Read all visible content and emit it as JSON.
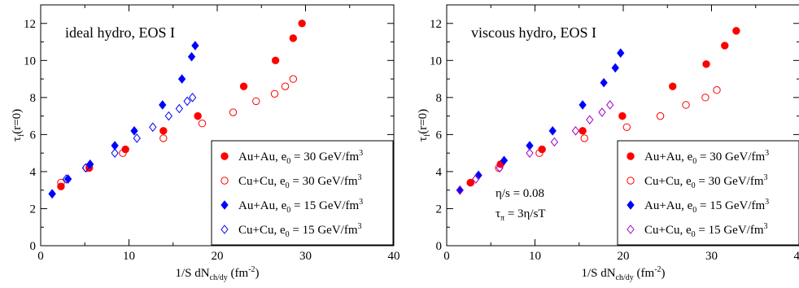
{
  "chart_data": [
    {
      "type": "scatter",
      "title": "ideal hydro, EOS I",
      "xlabel": "1/S dN_ch/dy (fm^-2)",
      "ylabel": "τ_f(r=0)",
      "xlim": [
        0,
        40
      ],
      "ylim": [
        0,
        13
      ],
      "x_ticks": [
        0,
        10,
        20,
        30,
        40
      ],
      "y_ticks": [
        0,
        2,
        4,
        6,
        8,
        10,
        12
      ],
      "legend_position": "bottom-right",
      "series": [
        {
          "name": "Au+Au, e_0 = 30 GeV/fm^3",
          "marker": "filled-circle",
          "color": "#ff0000",
          "x": [
            2.3,
            5.5,
            9.6,
            13.9,
            17.8,
            23.0,
            26.6,
            28.6,
            29.6
          ],
          "y": [
            3.2,
            4.2,
            5.2,
            6.2,
            7.0,
            8.6,
            10.0,
            11.2,
            12.0
          ]
        },
        {
          "name": "Cu+Cu, e_0 = 30 GeV/fm^3",
          "marker": "open-circle",
          "color": "#ff0000",
          "x": [
            2.3,
            5.2,
            9.3,
            13.9,
            18.3,
            21.8,
            24.4,
            26.5,
            27.7,
            28.6
          ],
          "y": [
            3.4,
            4.2,
            5.0,
            5.8,
            6.6,
            7.2,
            7.8,
            8.2,
            8.6,
            9.0
          ]
        },
        {
          "name": "Au+Au, e_0 = 15 GeV/fm^3",
          "marker": "filled-diamond",
          "color": "#0000ff",
          "x": [
            1.3,
            3.1,
            5.6,
            8.4,
            10.6,
            13.8,
            16.0,
            17.1,
            17.5
          ],
          "y": [
            2.8,
            3.6,
            4.4,
            5.4,
            6.2,
            7.6,
            9.0,
            10.2,
            10.8
          ]
        },
        {
          "name": "Cu+Cu, e_0 = 15 GeV/fm^3",
          "marker": "open-diamond",
          "color": "#0000ff",
          "x": [
            1.3,
            2.9,
            5.1,
            8.4,
            10.9,
            12.7,
            14.5,
            15.7,
            16.6,
            17.2
          ],
          "y": [
            2.8,
            3.6,
            4.2,
            5.0,
            5.8,
            6.4,
            7.0,
            7.4,
            7.8,
            8.0
          ]
        }
      ]
    },
    {
      "type": "scatter",
      "title": "viscous hydro, EOS I",
      "xlabel": "1/S dN_ch/dy (fm^-2)",
      "ylabel": "τ_f(r=0)",
      "xlim": [
        0,
        40
      ],
      "ylim": [
        0,
        13
      ],
      "x_ticks": [
        0,
        10,
        20,
        30,
        40
      ],
      "y_ticks": [
        0,
        2,
        4,
        6,
        8,
        10,
        12
      ],
      "legend_position": "bottom-right",
      "annotations": [
        "η/s = 0.08",
        "τ_π = 3η/sT"
      ],
      "series": [
        {
          "name": "Au+Au, e_0 = 30 GeV/fm^3",
          "marker": "filled-circle",
          "color": "#ff0000",
          "x": [
            2.7,
            6.1,
            10.8,
            15.4,
            19.9,
            25.6,
            29.4,
            31.5,
            32.8
          ],
          "y": [
            3.4,
            4.4,
            5.2,
            6.2,
            7.0,
            8.6,
            9.8,
            10.8,
            11.6
          ]
        },
        {
          "name": "Cu+Cu, e_0 = 30 GeV/fm^3",
          "marker": "open-circle",
          "color": "#ff0000",
          "x": [
            2.7,
            5.9,
            10.5,
            15.6,
            20.4,
            24.2,
            27.1,
            29.3,
            30.6
          ],
          "y": [
            3.4,
            4.2,
            5.0,
            5.8,
            6.4,
            7.0,
            7.6,
            8.0,
            8.4
          ]
        },
        {
          "name": "Au+Au, e_0 = 15 GeV/fm^3",
          "marker": "filled-diamond",
          "color": "#0000ff",
          "x": [
            1.5,
            3.6,
            6.5,
            9.4,
            12.0,
            15.4,
            17.8,
            19.1,
            19.7
          ],
          "y": [
            3.0,
            3.8,
            4.6,
            5.4,
            6.2,
            7.6,
            8.8,
            9.6,
            10.4
          ]
        },
        {
          "name": "Cu+Cu, e_0 = 15 GeV/fm^3",
          "marker": "open-diamond",
          "color": "#a000c8",
          "x": [
            1.5,
            3.3,
            6.0,
            9.4,
            12.2,
            14.6,
            16.2,
            17.6,
            18.5
          ],
          "y": [
            3.0,
            3.6,
            4.2,
            5.0,
            5.6,
            6.2,
            6.8,
            7.2,
            7.6
          ]
        }
      ]
    }
  ]
}
